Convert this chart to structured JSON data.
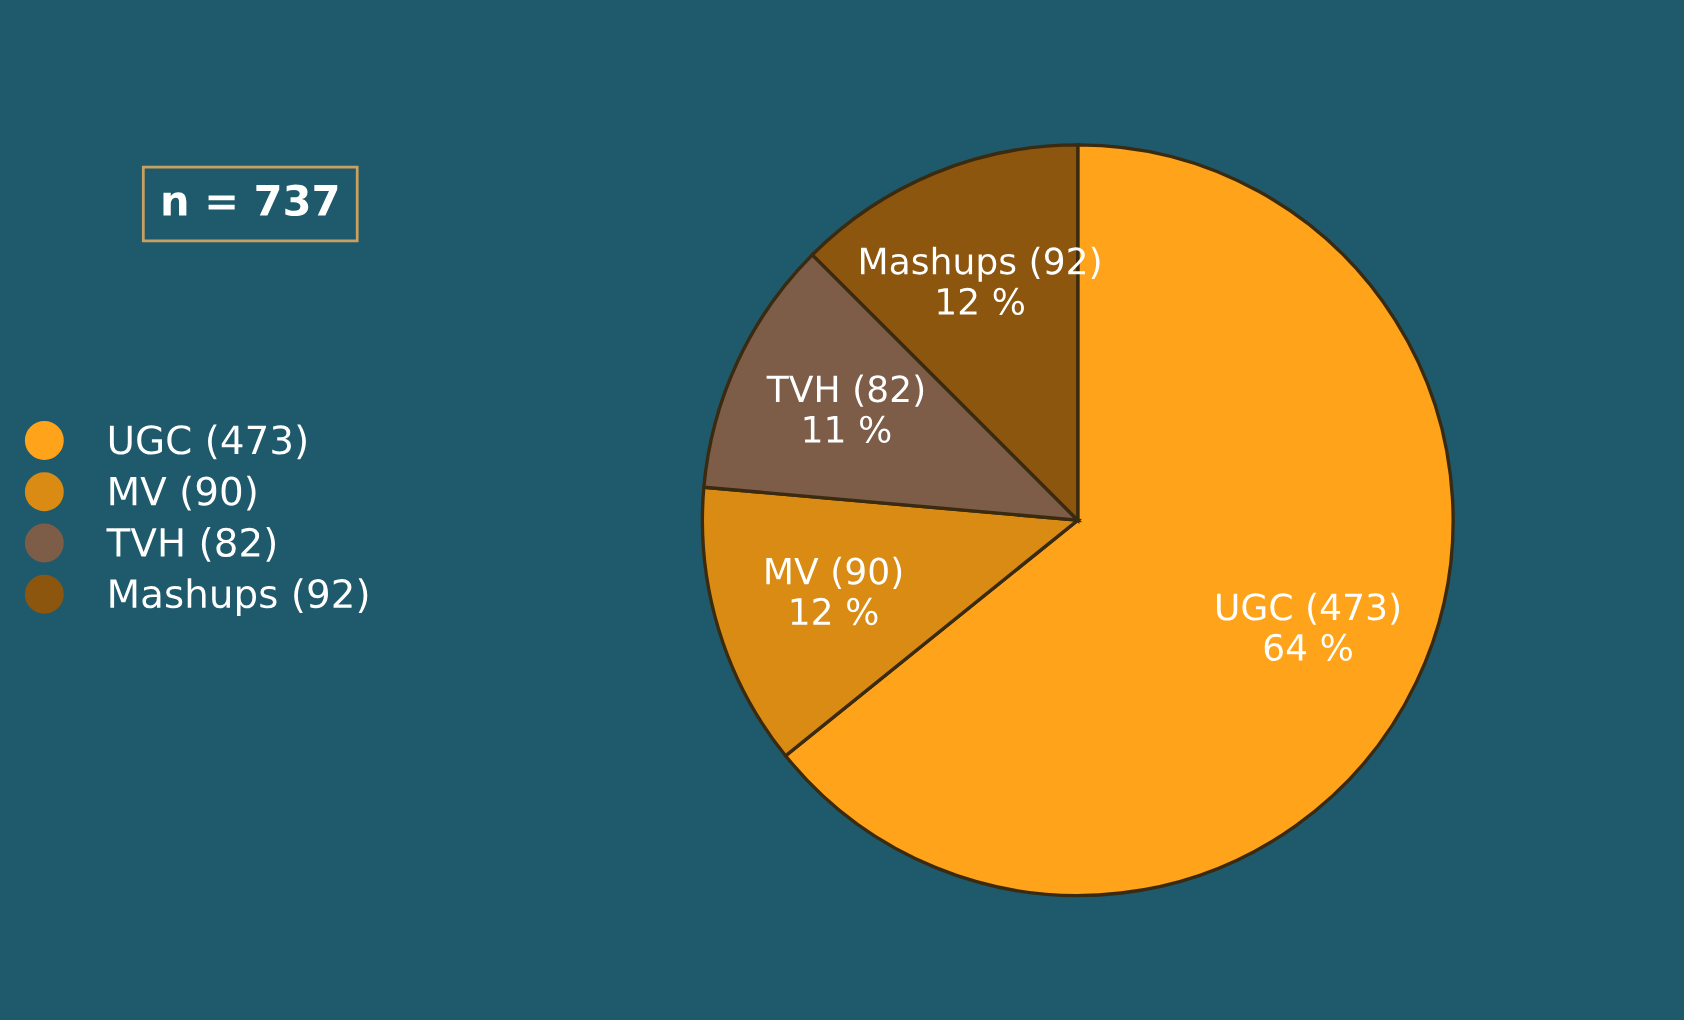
{
  "chart_data": {
    "type": "pie",
    "categories": [
      "UGC (473)",
      "MV (90)",
      "TVH (82)",
      "Mashups (92)"
    ],
    "values": [
      64.2,
      12.2,
      11.1,
      12.5
    ],
    "value_labels": [
      "64 %",
      "12 %",
      "11 %",
      "12 %"
    ],
    "colors": [
      "#ffa31a",
      "#d98b14",
      "#7d5c48",
      "#8c560f"
    ],
    "legend": "left",
    "annotations": [
      "n = 737"
    ]
  }
}
